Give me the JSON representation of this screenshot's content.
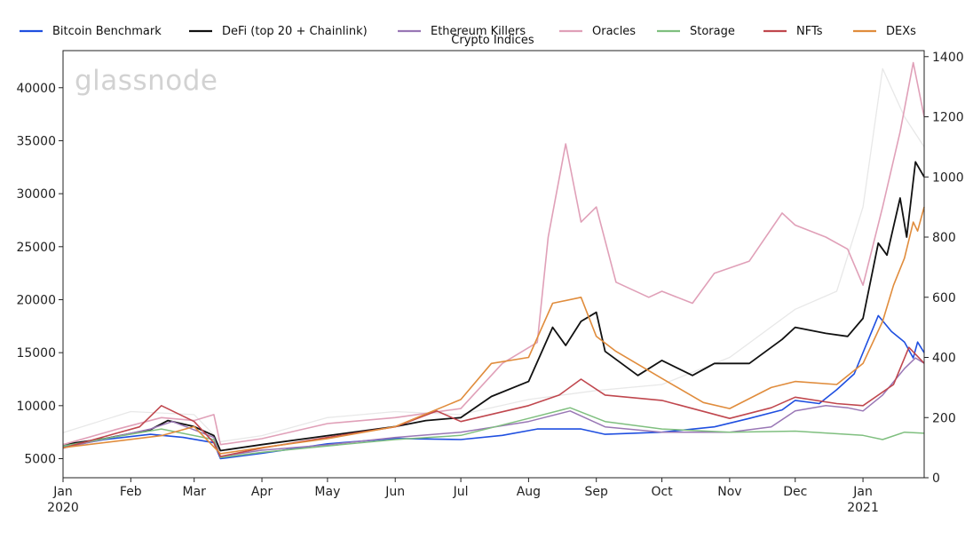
{
  "watermark": "glassnode",
  "chart_data": {
    "type": "line",
    "title": "Crypto Indices",
    "xlabel": "",
    "ylabel": "",
    "x_range": [
      "2020-01-01",
      "2021-01-29"
    ],
    "x_ticks": [
      {
        "date": "2020-01-01",
        "label": "Jan",
        "sublabel": "2020"
      },
      {
        "date": "2020-02-01",
        "label": "Feb",
        "sublabel": ""
      },
      {
        "date": "2020-03-01",
        "label": "Mar",
        "sublabel": ""
      },
      {
        "date": "2020-04-01",
        "label": "Apr",
        "sublabel": ""
      },
      {
        "date": "2020-05-01",
        "label": "May",
        "sublabel": ""
      },
      {
        "date": "2020-06-01",
        "label": "Jun",
        "sublabel": ""
      },
      {
        "date": "2020-07-01",
        "label": "Jul",
        "sublabel": ""
      },
      {
        "date": "2020-08-01",
        "label": "Aug",
        "sublabel": ""
      },
      {
        "date": "2020-09-01",
        "label": "Sep",
        "sublabel": ""
      },
      {
        "date": "2020-10-01",
        "label": "Oct",
        "sublabel": ""
      },
      {
        "date": "2020-11-01",
        "label": "Nov",
        "sublabel": ""
      },
      {
        "date": "2020-12-01",
        "label": "Dec",
        "sublabel": ""
      },
      {
        "date": "2021-01-01",
        "label": "Jan",
        "sublabel": "2021"
      }
    ],
    "y_left": {
      "range": [
        3200,
        43500
      ],
      "ticks": [
        5000,
        10000,
        15000,
        20000,
        25000,
        30000,
        35000,
        40000
      ]
    },
    "y_right": {
      "range": [
        0,
        1420
      ],
      "ticks": [
        0,
        200,
        400,
        600,
        800,
        1000,
        1200,
        1400
      ]
    },
    "grid": false,
    "legend_position": "top",
    "series": [
      {
        "name": "Bitcoin Benchmark",
        "color": "#1f4fe0",
        "axis": "left",
        "width": 1.6,
        "points": [
          [
            "2020-01-01",
            6100
          ],
          [
            "2020-01-20",
            6800
          ],
          [
            "2020-02-10",
            7300
          ],
          [
            "2020-02-25",
            7000
          ],
          [
            "2020-03-10",
            6500
          ],
          [
            "2020-03-13",
            5000
          ],
          [
            "2020-04-01",
            5500
          ],
          [
            "2020-05-01",
            6400
          ],
          [
            "2020-06-01",
            6900
          ],
          [
            "2020-07-01",
            6800
          ],
          [
            "2020-07-20",
            7200
          ],
          [
            "2020-08-05",
            7800
          ],
          [
            "2020-08-25",
            7800
          ],
          [
            "2020-09-05",
            7300
          ],
          [
            "2020-10-01",
            7500
          ],
          [
            "2020-10-25",
            8000
          ],
          [
            "2020-11-10",
            8800
          ],
          [
            "2020-11-25",
            9600
          ],
          [
            "2020-12-01",
            10500
          ],
          [
            "2020-12-12",
            10200
          ],
          [
            "2020-12-20",
            11500
          ],
          [
            "2020-12-28",
            13000
          ],
          [
            "2021-01-03",
            16000
          ],
          [
            "2021-01-08",
            18500
          ],
          [
            "2021-01-14",
            17000
          ],
          [
            "2021-01-20",
            16000
          ],
          [
            "2021-01-24",
            14500
          ],
          [
            "2021-01-26",
            16000
          ],
          [
            "2021-01-29",
            15000
          ]
        ]
      },
      {
        "name": "DeFi (top 20 + Chainlink)",
        "color": "#111111",
        "axis": "right",
        "width": 1.8,
        "points": [
          [
            "2020-01-01",
            110
          ],
          [
            "2020-01-20",
            130
          ],
          [
            "2020-02-10",
            160
          ],
          [
            "2020-02-18",
            190
          ],
          [
            "2020-03-01",
            170
          ],
          [
            "2020-03-10",
            140
          ],
          [
            "2020-03-13",
            90
          ],
          [
            "2020-04-01",
            110
          ],
          [
            "2020-05-01",
            140
          ],
          [
            "2020-06-01",
            170
          ],
          [
            "2020-06-15",
            190
          ],
          [
            "2020-07-01",
            200
          ],
          [
            "2020-07-15",
            270
          ],
          [
            "2020-08-01",
            320
          ],
          [
            "2020-08-12",
            500
          ],
          [
            "2020-08-18",
            440
          ],
          [
            "2020-08-25",
            520
          ],
          [
            "2020-09-01",
            550
          ],
          [
            "2020-09-05",
            420
          ],
          [
            "2020-09-20",
            340
          ],
          [
            "2020-10-01",
            390
          ],
          [
            "2020-10-15",
            340
          ],
          [
            "2020-10-25",
            380
          ],
          [
            "2020-11-10",
            380
          ],
          [
            "2020-11-25",
            460
          ],
          [
            "2020-12-01",
            500
          ],
          [
            "2020-12-15",
            480
          ],
          [
            "2020-12-25",
            470
          ],
          [
            "2021-01-01",
            530
          ],
          [
            "2021-01-08",
            780
          ],
          [
            "2021-01-12",
            740
          ],
          [
            "2021-01-18",
            930
          ],
          [
            "2021-01-21",
            800
          ],
          [
            "2021-01-25",
            1050
          ],
          [
            "2021-01-29",
            1000
          ]
        ]
      },
      {
        "name": "Ethereum Killers",
        "color": "#9977b5",
        "axis": "left",
        "width": 1.5,
        "points": [
          [
            "2020-01-01",
            6000
          ],
          [
            "2020-02-10",
            7800
          ],
          [
            "2020-02-20",
            8500
          ],
          [
            "2020-03-10",
            7000
          ],
          [
            "2020-03-13",
            5200
          ],
          [
            "2020-04-01",
            5800
          ],
          [
            "2020-05-01",
            6300
          ],
          [
            "2020-06-01",
            7000
          ],
          [
            "2020-07-01",
            7500
          ],
          [
            "2020-08-01",
            8500
          ],
          [
            "2020-08-20",
            9500
          ],
          [
            "2020-09-05",
            8000
          ],
          [
            "2020-10-01",
            7500
          ],
          [
            "2020-11-01",
            7500
          ],
          [
            "2020-11-20",
            8000
          ],
          [
            "2020-12-01",
            9500
          ],
          [
            "2020-12-15",
            10000
          ],
          [
            "2020-12-25",
            9800
          ],
          [
            "2021-01-01",
            9500
          ],
          [
            "2021-01-10",
            11000
          ],
          [
            "2021-01-20",
            13500
          ],
          [
            "2021-01-25",
            14500
          ],
          [
            "2021-01-29",
            14000
          ]
        ]
      },
      {
        "name": "Oracles",
        "color": "#e0a0b8",
        "axis": "right",
        "width": 1.6,
        "points": [
          [
            "2020-01-01",
            110
          ],
          [
            "2020-01-25",
            160
          ],
          [
            "2020-02-15",
            200
          ],
          [
            "2020-03-01",
            190
          ],
          [
            "2020-03-10",
            210
          ],
          [
            "2020-03-13",
            110
          ],
          [
            "2020-04-01",
            130
          ],
          [
            "2020-05-01",
            180
          ],
          [
            "2020-06-01",
            200
          ],
          [
            "2020-07-01",
            230
          ],
          [
            "2020-07-20",
            380
          ],
          [
            "2020-08-05",
            450
          ],
          [
            "2020-08-10",
            800
          ],
          [
            "2020-08-18",
            1110
          ],
          [
            "2020-08-25",
            850
          ],
          [
            "2020-09-01",
            900
          ],
          [
            "2020-09-10",
            650
          ],
          [
            "2020-09-25",
            600
          ],
          [
            "2020-10-01",
            620
          ],
          [
            "2020-10-15",
            580
          ],
          [
            "2020-10-25",
            680
          ],
          [
            "2020-11-10",
            720
          ],
          [
            "2020-11-25",
            880
          ],
          [
            "2020-12-01",
            840
          ],
          [
            "2020-12-15",
            800
          ],
          [
            "2020-12-25",
            760
          ],
          [
            "2021-01-01",
            640
          ],
          [
            "2021-01-10",
            900
          ],
          [
            "2021-01-18",
            1150
          ],
          [
            "2021-01-24",
            1380
          ],
          [
            "2021-01-29",
            1200
          ]
        ]
      },
      {
        "name": "Storage",
        "color": "#7fbf7f",
        "axis": "left",
        "width": 1.5,
        "points": [
          [
            "2020-01-01",
            6200
          ],
          [
            "2020-02-15",
            7800
          ],
          [
            "2020-03-10",
            6800
          ],
          [
            "2020-03-13",
            5100
          ],
          [
            "2020-04-01",
            5600
          ],
          [
            "2020-05-01",
            6200
          ],
          [
            "2020-06-01",
            6800
          ],
          [
            "2020-07-01",
            7200
          ],
          [
            "2020-08-01",
            8800
          ],
          [
            "2020-08-20",
            9800
          ],
          [
            "2020-09-05",
            8500
          ],
          [
            "2020-10-01",
            7800
          ],
          [
            "2020-11-01",
            7500
          ],
          [
            "2020-12-01",
            7600
          ],
          [
            "2021-01-01",
            7200
          ],
          [
            "2021-01-10",
            6800
          ],
          [
            "2021-01-20",
            7500
          ],
          [
            "2021-01-29",
            7400
          ]
        ]
      },
      {
        "name": "NFTs",
        "color": "#c0474e",
        "axis": "left",
        "width": 1.6,
        "points": [
          [
            "2020-01-01",
            6000
          ],
          [
            "2020-02-05",
            8000
          ],
          [
            "2020-02-15",
            10000
          ],
          [
            "2020-03-01",
            8500
          ],
          [
            "2020-03-10",
            6500
          ],
          [
            "2020-03-13",
            5200
          ],
          [
            "2020-04-01",
            6000
          ],
          [
            "2020-05-01",
            7000
          ],
          [
            "2020-06-01",
            8000
          ],
          [
            "2020-06-20",
            9500
          ],
          [
            "2020-07-01",
            8500
          ],
          [
            "2020-08-01",
            10000
          ],
          [
            "2020-08-15",
            11000
          ],
          [
            "2020-08-25",
            12500
          ],
          [
            "2020-09-05",
            11000
          ],
          [
            "2020-10-01",
            10500
          ],
          [
            "2020-11-01",
            8800
          ],
          [
            "2020-11-20",
            9800
          ],
          [
            "2020-12-01",
            10800
          ],
          [
            "2020-12-20",
            10200
          ],
          [
            "2021-01-01",
            10000
          ],
          [
            "2021-01-15",
            12000
          ],
          [
            "2021-01-22",
            15500
          ],
          [
            "2021-01-29",
            14000
          ]
        ]
      },
      {
        "name": "DEXs",
        "color": "#e08c3c",
        "axis": "right",
        "width": 1.6,
        "points": [
          [
            "2020-01-01",
            100
          ],
          [
            "2020-02-15",
            140
          ],
          [
            "2020-03-01",
            170
          ],
          [
            "2020-03-13",
            80
          ],
          [
            "2020-04-01",
            100
          ],
          [
            "2020-05-01",
            130
          ],
          [
            "2020-06-01",
            170
          ],
          [
            "2020-07-01",
            260
          ],
          [
            "2020-07-15",
            380
          ],
          [
            "2020-08-01",
            400
          ],
          [
            "2020-08-12",
            580
          ],
          [
            "2020-08-25",
            600
          ],
          [
            "2020-09-01",
            470
          ],
          [
            "2020-09-10",
            420
          ],
          [
            "2020-10-01",
            330
          ],
          [
            "2020-10-20",
            250
          ],
          [
            "2020-11-01",
            230
          ],
          [
            "2020-11-20",
            300
          ],
          [
            "2020-12-01",
            320
          ],
          [
            "2020-12-20",
            310
          ],
          [
            "2021-01-01",
            380
          ],
          [
            "2021-01-10",
            520
          ],
          [
            "2021-01-15",
            640
          ],
          [
            "2021-01-20",
            730
          ],
          [
            "2021-01-24",
            850
          ],
          [
            "2021-01-26",
            820
          ],
          [
            "2021-01-29",
            900
          ]
        ]
      },
      {
        "name": "",
        "color": "#e8e8e8",
        "axis": "right",
        "width": 1.3,
        "points": [
          [
            "2020-01-01",
            150
          ],
          [
            "2020-02-01",
            220
          ],
          [
            "2020-03-01",
            210
          ],
          [
            "2020-03-13",
            120
          ],
          [
            "2020-04-01",
            140
          ],
          [
            "2020-05-01",
            200
          ],
          [
            "2020-06-01",
            220
          ],
          [
            "2020-07-01",
            210
          ],
          [
            "2020-08-01",
            260
          ],
          [
            "2020-09-01",
            290
          ],
          [
            "2020-10-01",
            310
          ],
          [
            "2020-11-01",
            400
          ],
          [
            "2020-12-01",
            560
          ],
          [
            "2020-12-20",
            620
          ],
          [
            "2021-01-01",
            900
          ],
          [
            "2021-01-10",
            1360
          ],
          [
            "2021-01-20",
            1200
          ],
          [
            "2021-01-29",
            1100
          ]
        ]
      }
    ]
  }
}
